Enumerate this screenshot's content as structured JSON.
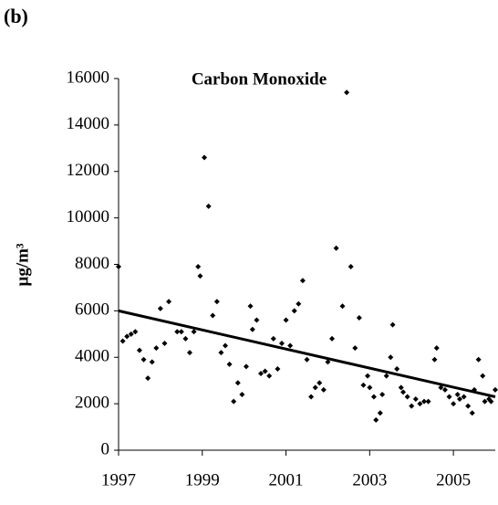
{
  "panel_label": "(b)",
  "chart_data": {
    "type": "scatter",
    "title": "Carbon Monoxide",
    "ylabel": "µg/m³",
    "color": "#000000",
    "x": [
      1997.0,
      1997.1,
      1997.2,
      1997.3,
      1997.4,
      1997.5,
      1997.6,
      1997.7,
      1997.8,
      1997.9,
      1998.0,
      1998.1,
      1998.2,
      1998.4,
      1998.5,
      1998.6,
      1998.7,
      1998.8,
      1998.9,
      1998.95,
      1999.05,
      1999.15,
      1999.25,
      1999.35,
      1999.45,
      1999.55,
      1999.65,
      1999.75,
      1999.85,
      1999.95,
      2000.05,
      2000.15,
      2000.2,
      2000.3,
      2000.4,
      2000.5,
      2000.6,
      2000.7,
      2000.8,
      2000.9,
      2001.0,
      2001.1,
      2001.2,
      2001.3,
      2001.4,
      2001.5,
      2001.6,
      2001.7,
      2001.8,
      2001.9,
      2002.0,
      2002.1,
      2002.2,
      2002.35,
      2002.45,
      2002.55,
      2002.65,
      2002.75,
      2002.85,
      2002.95,
      2003.0,
      2003.1,
      2003.15,
      2003.25,
      2003.3,
      2003.4,
      2003.5,
      2003.55,
      2003.65,
      2003.75,
      2003.8,
      2003.9,
      2004.0,
      2004.1,
      2004.2,
      2004.3,
      2004.4,
      2004.55,
      2004.6,
      2004.7,
      2004.8,
      2004.9,
      2005.0,
      2005.1,
      2005.15,
      2005.25,
      2005.35,
      2005.45,
      2005.5,
      2005.6,
      2005.7,
      2005.75,
      2005.85,
      2005.9,
      2006.0
    ],
    "values": [
      7900,
      4700,
      4900,
      5000,
      5100,
      4300,
      3900,
      3100,
      3800,
      4400,
      6100,
      4600,
      6400,
      5100,
      5100,
      4800,
      4200,
      5100,
      7900,
      7500,
      12600,
      10500,
      5800,
      6400,
      4200,
      4500,
      3700,
      2100,
      2900,
      2400,
      3600,
      6200,
      5200,
      5600,
      3300,
      3400,
      3200,
      4800,
      3500,
      4600,
      5600,
      4500,
      6000,
      6300,
      7300,
      3900,
      2300,
      2700,
      2900,
      2600,
      3800,
      4800,
      8700,
      6200,
      15400,
      7900,
      4400,
      5700,
      2800,
      3200,
      2700,
      2300,
      1300,
      1600,
      2400,
      3200,
      4000,
      5400,
      3500,
      2700,
      2500,
      2300,
      1900,
      2200,
      2000,
      2100,
      2100,
      3900,
      4400,
      2700,
      2600,
      2300,
      2000,
      2400,
      2200,
      2300,
      1900,
      1600,
      2600,
      3900,
      3200,
      2100,
      2200,
      2100,
      2600
    ],
    "trend": {
      "x": [
        1997,
        2006
      ],
      "values": [
        6000,
        2300
      ]
    },
    "xlim": [
      1997,
      2006
    ],
    "xticks": [
      1997,
      1999,
      2001,
      2003,
      2005
    ],
    "ylim": [
      0,
      16000
    ],
    "yticks": [
      0,
      2000,
      4000,
      6000,
      8000,
      10000,
      12000,
      14000,
      16000
    ]
  }
}
